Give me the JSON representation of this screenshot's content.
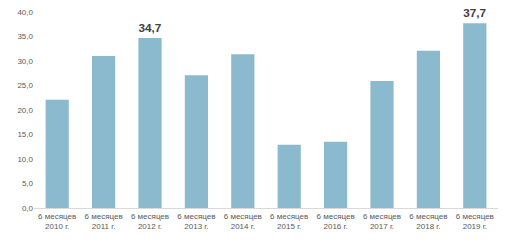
{
  "chart_data": {
    "type": "bar",
    "categories": [
      "6 месяцев 2010 г.",
      "6 месяцев 2011 г.",
      "6 месяцев 2012 г.",
      "6 месяцев 2013 г.",
      "6 месяцев 2014 г.",
      "6 месяцев 2015 г.",
      "6 месяцев 2016 г.",
      "6 месяцев 2017 г.",
      "6 месяцев 2018 г.",
      "6 месяцев 2019 г."
    ],
    "values": [
      22.1,
      31.0,
      34.7,
      27.1,
      31.4,
      12.9,
      13.5,
      25.9,
      32.1,
      37.7
    ],
    "value_labels": [
      null,
      null,
      "34,7",
      null,
      null,
      null,
      null,
      null,
      null,
      "37,7"
    ],
    "data_labels": true,
    "color": "#8bb9cd",
    "ylim": [
      0,
      40
    ],
    "yticks": [
      {
        "value": 0,
        "label": "0,0"
      },
      {
        "value": 5,
        "label": "5,0"
      },
      {
        "value": 10,
        "label": "10,0"
      },
      {
        "value": 15,
        "label": "15,0"
      },
      {
        "value": 20,
        "label": "20,0"
      },
      {
        "value": 25,
        "label": "25,0"
      },
      {
        "value": 30,
        "label": "30,0"
      },
      {
        "value": 35,
        "label": "35,0"
      },
      {
        "value": 40,
        "label": "40,0"
      }
    ],
    "grid": false
  }
}
